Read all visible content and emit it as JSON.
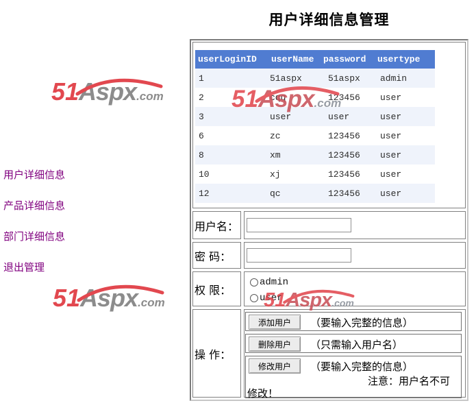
{
  "title": "用户详细信息管理",
  "colors": {
    "table_header_bg": "#507CD1",
    "table_row_alt_bg": "#EFF3FB",
    "sidebar_link": "#80007F",
    "logo_red": "#E2484F",
    "logo_gray": "#8C8C8C",
    "watermark_red": "#C9515A",
    "cell_border": "#808080"
  },
  "logo": {
    "part_51": "51",
    "part_aspx": "Aspx",
    "part_com": ".com"
  },
  "sidebar": {
    "links": [
      "用户详细信息",
      "产品详细信息",
      "部门详细信息",
      "退出管理"
    ]
  },
  "table": {
    "headers": [
      "userLoginID",
      "userName",
      "password",
      "usertype"
    ],
    "rows": [
      [
        "1",
        "51aspx",
        "51aspx",
        "admin"
      ],
      [
        "2",
        "cqq",
        "123456",
        "user"
      ],
      [
        "3",
        "user",
        "user",
        "user"
      ],
      [
        "6",
        "zc",
        "123456",
        "user"
      ],
      [
        "8",
        "xm",
        "123456",
        "user"
      ],
      [
        "10",
        "xj",
        "123456",
        "user"
      ],
      [
        "12",
        "qc",
        "123456",
        "user"
      ]
    ]
  },
  "form": {
    "username_label": "用户名：",
    "username_value": "",
    "password_label": "密 码：",
    "password_value": "",
    "role_label": "权 限：",
    "roles": [
      "admin",
      "user"
    ],
    "action_label": "操  作：",
    "actions": [
      {
        "button": "添加用户",
        "hint": "（要输入完整的信息）"
      },
      {
        "button": "删除用户",
        "hint": "（只需输入用户名）"
      },
      {
        "button": "修改用户",
        "hint": "（要输入完整的信息）"
      }
    ],
    "note_line1": "注意：用户名不可",
    "note_line2": "修改！"
  }
}
